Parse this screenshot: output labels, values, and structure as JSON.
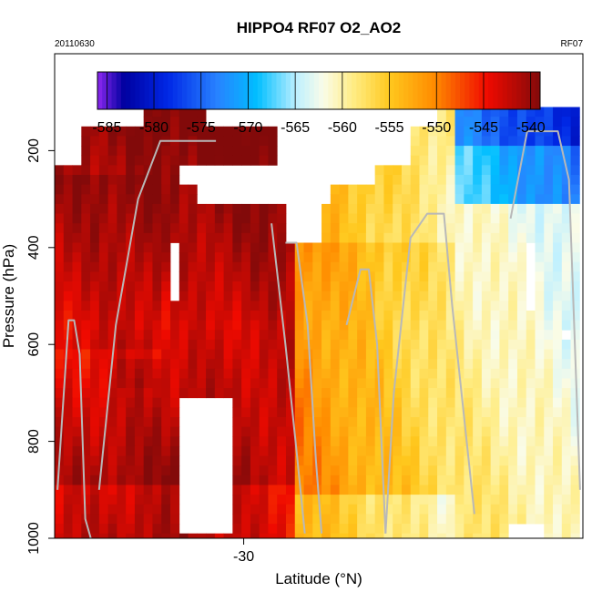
{
  "chart_data": {
    "type": "heatmap",
    "title": "HIPPO4 RF07 O2_AO2",
    "date_label": "20110630",
    "flight_label": "RF07",
    "xlabel": "Latitude (°N)",
    "ylabel": "Pressure (hPa)",
    "x_ticks": [
      -30
    ],
    "y_ticks": [
      200,
      400,
      600,
      800,
      1000
    ],
    "xlim": [
      -36.8,
      -17.8
    ],
    "ylim": [
      1000,
      0
    ],
    "y_reversed": true,
    "grid": false,
    "colorbar": {
      "placement": "inset-top",
      "range": [
        -586,
        -539
      ],
      "ticks": [
        -585,
        -580,
        -575,
        -570,
        -565,
        -560,
        -555,
        -550,
        -545,
        -540
      ]
    }
  }
}
